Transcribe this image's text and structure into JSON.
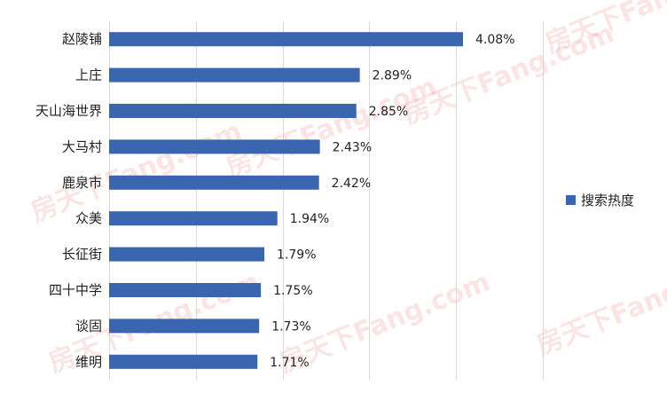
{
  "chart_data": {
    "type": "bar",
    "orientation": "horizontal",
    "categories": [
      "赵陵铺",
      "上庄",
      "天山海世界",
      "大马村",
      "鹿泉市",
      "众美",
      "长征街",
      "四十中学",
      "谈固",
      "维明"
    ],
    "series": [
      {
        "name": "搜索热度",
        "values": [
          4.08,
          2.89,
          2.85,
          2.43,
          2.42,
          1.94,
          1.79,
          1.75,
          1.73,
          1.71
        ],
        "labels": [
          "4.08%",
          "2.89%",
          "2.85%",
          "2.43%",
          "2.42%",
          "1.94%",
          "1.79%",
          "1.75%",
          "1.73%",
          "1.71%"
        ],
        "color": "#3A66B0"
      }
    ],
    "xlim": [
      0,
      5
    ],
    "grid": true,
    "legend_position": "right"
  },
  "watermark": "房天下Fang.com"
}
